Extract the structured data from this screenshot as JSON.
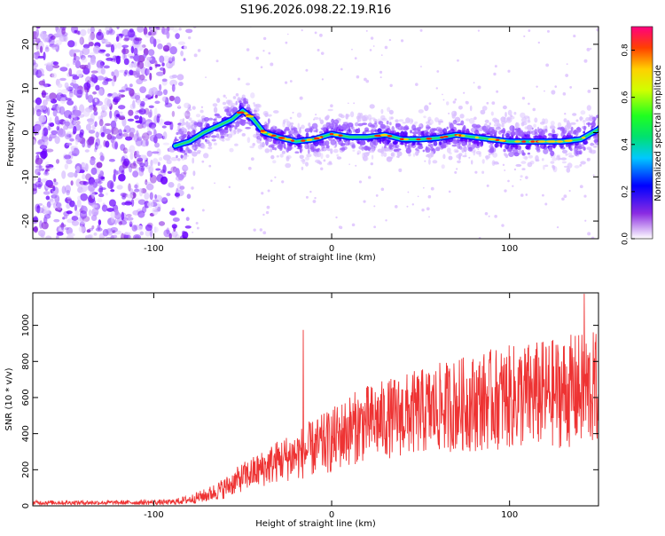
{
  "title": "S196.2026.098.22.19.R16",
  "chart_data": [
    {
      "type": "heatmap",
      "name": "spectrogram",
      "xlabel": "Height of straight line (km)",
      "ylabel": "Frequency (Hz)",
      "xlim": [
        -168,
        150
      ],
      "ylim": [
        -24,
        24
      ],
      "xticks": [
        -100,
        0,
        100
      ],
      "xtick_labels": [
        "-100",
        "0",
        "100"
      ],
      "yticks": [
        -20,
        -10,
        0,
        10,
        20
      ],
      "ytick_labels": [
        "-20",
        "-10",
        "0",
        "10",
        "20"
      ],
      "colorbar": {
        "label": "Normalized spectral amplitude",
        "range": [
          0.0,
          0.9
        ],
        "ticks": [
          0.0,
          0.2,
          0.4,
          0.6,
          0.8
        ],
        "tick_labels": [
          "0.0",
          "0.2",
          "0.4",
          "0.6",
          "0.8"
        ]
      },
      "ridge": {
        "x": [
          -88,
          -80,
          -72,
          -64,
          -56,
          -50,
          -44,
          -38,
          -30,
          -20,
          -10,
          0,
          10,
          20,
          30,
          40,
          50,
          60,
          70,
          80,
          90,
          100,
          110,
          120,
          130,
          140,
          150
        ],
        "y": [
          -3,
          -2,
          0,
          1.5,
          3,
          5,
          3,
          0,
          -1,
          -2,
          -1.5,
          -0.3,
          -1,
          -1,
          -0.5,
          -1.5,
          -1.5,
          -1.2,
          -0.5,
          -1,
          -1.5,
          -2,
          -2,
          -2,
          -2,
          -1.5,
          0.8
        ]
      }
    },
    {
      "type": "line",
      "name": "snr",
      "xlabel": "Height of straight line (km)",
      "ylabel": "SNR (10 * v/v)",
      "xlim": [
        -168,
        150
      ],
      "ylim": [
        0,
        1180
      ],
      "xticks": [
        -100,
        0,
        100
      ],
      "xtick_labels": [
        "-100",
        "0",
        "100"
      ],
      "yticks": [
        0,
        200,
        400,
        600,
        800,
        1000
      ],
      "ytick_labels": [
        "0",
        "200",
        "400",
        "600",
        "800",
        "1000"
      ],
      "color": "#ee3333",
      "envelope": {
        "x": [
          -168,
          -120,
          -90,
          -80,
          -70,
          -60,
          -50,
          -40,
          -30,
          -20,
          -10,
          0,
          10,
          20,
          30,
          40,
          50,
          60,
          70,
          80,
          90,
          100,
          110,
          120,
          130,
          140,
          150
        ],
        "mean": [
          18,
          18,
          20,
          35,
          60,
          100,
          160,
          200,
          250,
          280,
          320,
          360,
          420,
          460,
          480,
          500,
          520,
          540,
          560,
          570,
          590,
          600,
          610,
          620,
          630,
          640,
          650
        ],
        "spread": [
          12,
          12,
          15,
          25,
          40,
          60,
          80,
          100,
          120,
          140,
          160,
          180,
          200,
          210,
          220,
          230,
          240,
          250,
          260,
          270,
          280,
          290,
          300,
          300,
          310,
          320,
          320
        ]
      },
      "spikes": [
        {
          "x": -16,
          "y": 975
        },
        {
          "x": 142,
          "y": 1175
        }
      ]
    }
  ]
}
